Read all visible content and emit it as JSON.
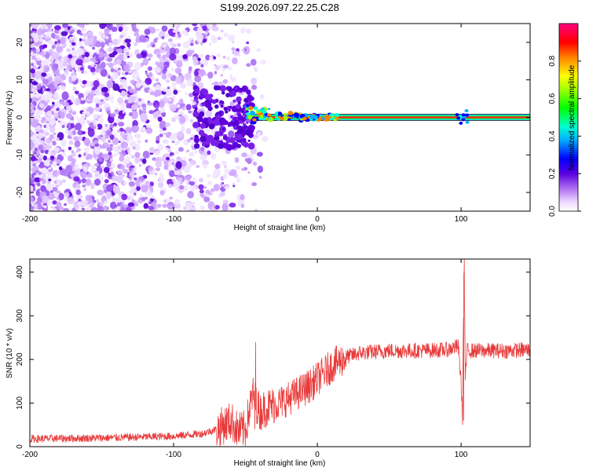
{
  "title": "S199.2026.097.22.25.C28",
  "chart_data": [
    {
      "type": "heatmap",
      "name": "spectrogram",
      "xlabel": "Height of straight line (km)",
      "ylabel": "Frequency (Hz)",
      "xlim": [
        -200,
        148
      ],
      "ylim": [
        -25,
        25
      ],
      "xticks": [
        -200,
        -100,
        0,
        100
      ],
      "xtick_labels": [
        "-200",
        "-100",
        "0",
        "100"
      ],
      "yticks": [
        -20,
        -10,
        0,
        10,
        20
      ],
      "ytick_labels": [
        "-20",
        "-10",
        "0",
        "10",
        "20"
      ],
      "colorbar": {
        "label": "Normalized spectral amplitude",
        "range": [
          0,
          1
        ],
        "ticks": [
          0.0,
          0.2,
          0.4,
          0.6,
          0.8
        ],
        "tick_labels": [
          "0.0",
          "0.2",
          "0.4",
          "0.6",
          "0.8"
        ]
      },
      "features": {
        "carrier_line_hz": 0,
        "noise_region_km": [
          -200,
          -40
        ],
        "carrier_visible_from_km": -45,
        "burst_near_km": 100
      }
    },
    {
      "type": "line",
      "name": "snr",
      "xlabel": "Height of straight line (km)",
      "ylabel": "SNR (10 * v/v)",
      "xlim": [
        -200,
        148
      ],
      "ylim": [
        0,
        430
      ],
      "xticks": [
        -200,
        -100,
        0,
        100
      ],
      "xtick_labels": [
        "-200",
        "-100",
        "0",
        "100"
      ],
      "yticks": [
        0,
        100,
        200,
        300,
        400
      ],
      "ytick_labels": [
        "0",
        "100",
        "200",
        "300",
        "400"
      ],
      "series": [
        {
          "name": "SNR",
          "color": "#e83a3a",
          "x": [
            -200,
            -150,
            -100,
            -80,
            -70,
            -60,
            -55,
            -50,
            -45,
            -40,
            -35,
            -30,
            -20,
            -10,
            -5,
            0,
            10,
            20,
            30,
            50,
            70,
            90,
            98,
            100,
            101,
            102,
            103,
            104,
            110,
            130,
            148
          ],
          "y": [
            18,
            20,
            24,
            30,
            40,
            60,
            35,
            40,
            120,
            80,
            90,
            95,
            110,
            130,
            140,
            155,
            185,
            205,
            215,
            220,
            220,
            222,
            230,
            150,
            60,
            430,
            150,
            220,
            220,
            220,
            222
          ]
        }
      ]
    }
  ]
}
